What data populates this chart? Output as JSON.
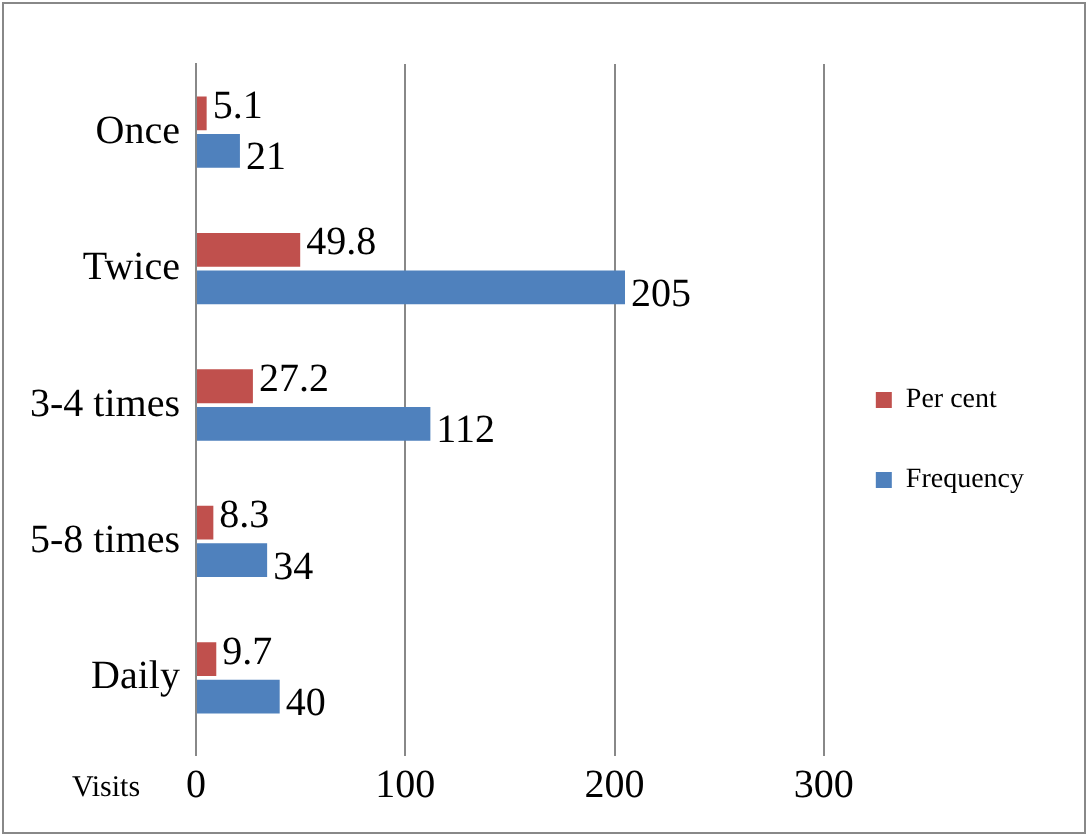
{
  "chart_data": {
    "type": "bar",
    "orientation": "horizontal",
    "ylabel": "Visits",
    "categories": [
      "Once",
      "Twice",
      "3-4 times",
      "5-8 times",
      "Daily"
    ],
    "series": [
      {
        "name": "Per cent",
        "color": "#c0504d",
        "values": [
          5.1,
          49.8,
          27.2,
          8.3,
          9.7
        ]
      },
      {
        "name": "Frequency",
        "color": "#4f81bd",
        "values": [
          21,
          205,
          112,
          34,
          40
        ]
      }
    ],
    "xlim": [
      0,
      300
    ],
    "xticks": [
      0,
      100,
      200,
      300
    ],
    "grid": "x",
    "legend": "right",
    "data_labels": true
  }
}
